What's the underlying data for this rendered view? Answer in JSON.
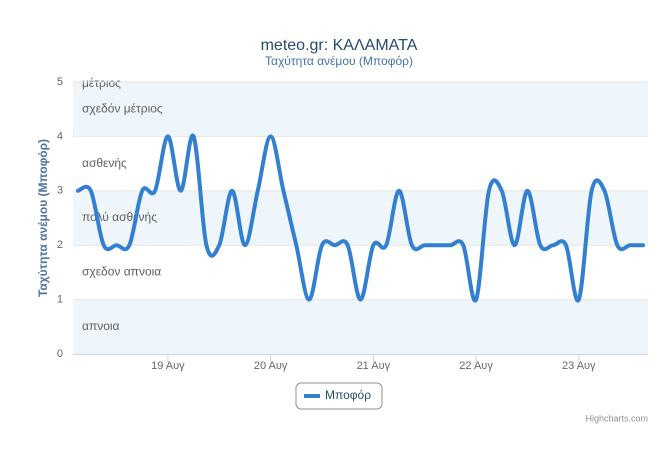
{
  "chart_data": {
    "type": "spline",
    "title": "meteo.gr: ΚΑΛΑΜΑΤΑ",
    "subtitle": "Ταχύτητα ανέμου (Μποφόρ)",
    "y_axis_label": "Ταχύτητα ανέμου (Μποφόρ)",
    "categories": [
      null,
      null,
      null,
      null,
      null,
      null,
      null,
      "19 Αυγ",
      null,
      null,
      null,
      null,
      null,
      null,
      null,
      "20 Αυγ",
      null,
      null,
      null,
      null,
      null,
      null,
      null,
      "21 Αυγ",
      null,
      null,
      null,
      null,
      null,
      null,
      null,
      "22 Αυγ",
      null,
      null,
      null,
      null,
      null,
      null,
      null,
      "23 Αυγ",
      null,
      null,
      null,
      null,
      null
    ],
    "series": [
      {
        "name": "Μποφόρ",
        "color": "#3480d0",
        "values": [
          3,
          3,
          2,
          2,
          2,
          3,
          3,
          4,
          3,
          4,
          2,
          2,
          3,
          2,
          3,
          4,
          3,
          2,
          1,
          2,
          2,
          2,
          1,
          2,
          2,
          3,
          2,
          2,
          2,
          2,
          2,
          1,
          3,
          3,
          2,
          3,
          2,
          2,
          2,
          1,
          3,
          3,
          2,
          2,
          2
        ]
      }
    ],
    "ylim": [
      0,
      5
    ],
    "yticks": [
      0,
      1,
      2,
      3,
      4,
      5
    ],
    "grid": true,
    "plot_bands": [
      {
        "from": 0,
        "to": 1,
        "label": "απνοια",
        "color": "#eef5fb"
      },
      {
        "from": 1,
        "to": 2,
        "label": "σχεδον απνοια",
        "color": "#ffffff"
      },
      {
        "from": 2,
        "to": 3,
        "label": "πολύ ασθενής",
        "color": "#eef5fb"
      },
      {
        "from": 3,
        "to": 4,
        "label": "ασθενής",
        "color": "#ffffff"
      },
      {
        "from": 4,
        "to": 5,
        "label": "σχεδόν μέτριος",
        "color": "#eef5fb"
      },
      {
        "from": 5,
        "to": 6,
        "label": "μέτριος",
        "color": "#ffffff"
      }
    ],
    "legend": "bottom",
    "credits": "Highcharts.com"
  }
}
